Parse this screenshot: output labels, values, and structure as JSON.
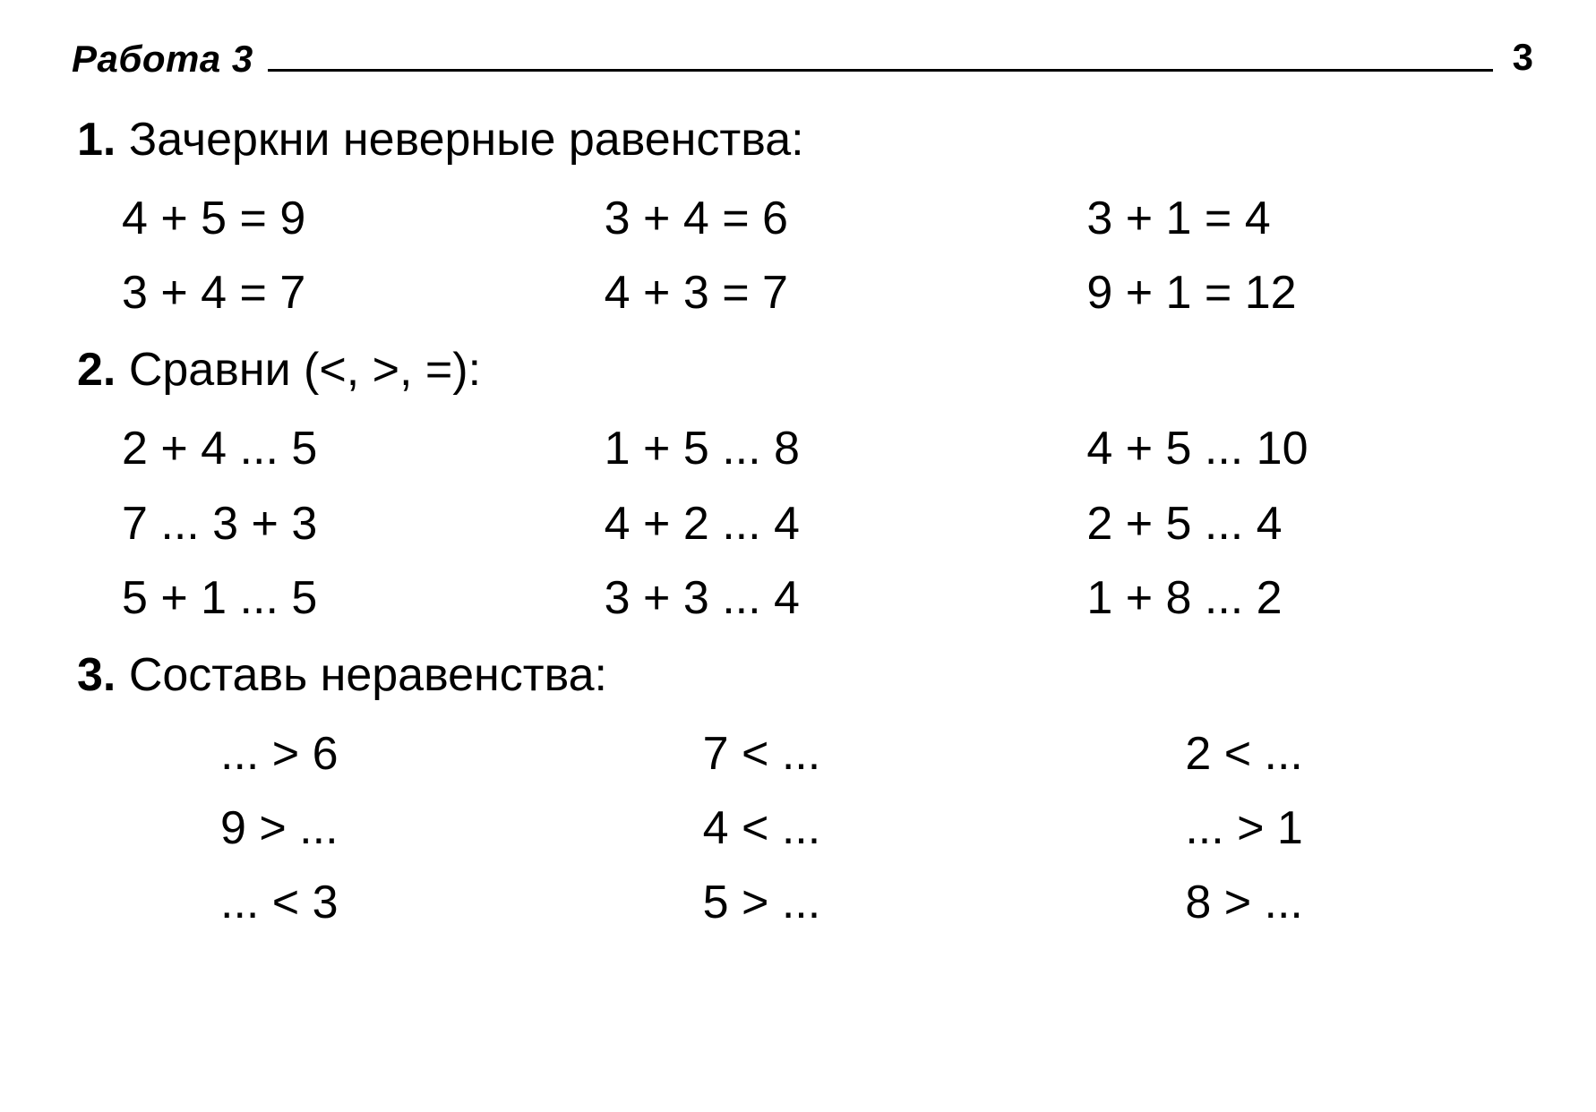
{
  "header": {
    "work_label": "Работа 3",
    "page_number": "3"
  },
  "tasks": {
    "t1": {
      "num": "1.",
      "title": "Зачеркни неверные равенства:",
      "rows": [
        [
          "4 + 5 = 9",
          "3 + 4 = 6",
          "3 + 1 = 4"
        ],
        [
          "3 + 4 = 7",
          "4 + 3 = 7",
          "9 + 1 = 12"
        ]
      ]
    },
    "t2": {
      "num": "2.",
      "title": "Сравни (<, >, =):",
      "rows": [
        [
          "2 + 4 ... 5",
          "1 + 5 ... 8",
          "4 + 5 ... 10"
        ],
        [
          "7 ... 3 + 3",
          "4 + 2 ... 4",
          "2 + 5 ... 4"
        ],
        [
          "5 + 1 ... 5",
          "3 + 3 ... 4",
          "1 + 8 ... 2"
        ]
      ]
    },
    "t3": {
      "num": "3.",
      "title": "Составь неравенства:",
      "rows": [
        [
          "... > 6",
          "7 < ...",
          "2  <  ..."
        ],
        [
          "9 > ...",
          "4 < ...",
          "...  >  1"
        ],
        [
          "... < 3",
          "5 > ...",
          "8  >  ..."
        ]
      ]
    }
  }
}
